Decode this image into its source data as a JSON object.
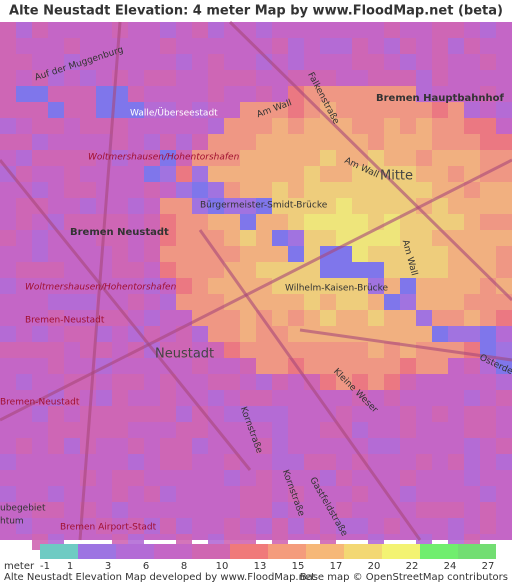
{
  "header": {
    "title": "Alte Neustadt Elevation: 4 meter Map by www.FloodMap.net (beta)"
  },
  "map": {
    "labels": [
      "Auf der Muggenburg",
      "Walle/Überseestadt",
      "Falkenstraße",
      "Bremen Hauptbahnhof",
      "Am Wall",
      "Woltmershausen/Hohentorshafen",
      "Mitte",
      "Bürgermeister-Smidt-Brücke",
      "Bremen Neustadt",
      "Am Wall",
      "Wilhelm-Kaisen-Brücke",
      "Woltmershausen/Hohentorshafen",
      "Bremen-Neustadt",
      "Neustadt",
      "Osterdeich",
      "Kornstraße",
      "Bremen-Neustadt",
      "Kornstraße",
      "Gastfeldstraße",
      "Bremen Airport-Stadt",
      "ubegebiet",
      "htum",
      "Am Wall",
      "Kleine Weser"
    ]
  },
  "legend": {
    "unit": "meter",
    "ticks": [
      -1,
      1,
      3,
      6,
      8,
      10,
      13,
      15,
      17,
      20,
      22,
      24,
      27
    ],
    "colors": [
      "#6ecbc3",
      "#7878ee",
      "#9d74e2",
      "#b36bd6",
      "#c466c6",
      "#cf66b2",
      "#f07a7a",
      "#f49c7c",
      "#f6b878",
      "#f3d873",
      "#f3f372",
      "#70ee6e",
      "#72de72"
    ]
  },
  "footer": {
    "credit": "Alte Neustadt Elevation Map developed by www.FloodMap.net",
    "osm": "Base map © OpenStreetMap contributors"
  }
}
